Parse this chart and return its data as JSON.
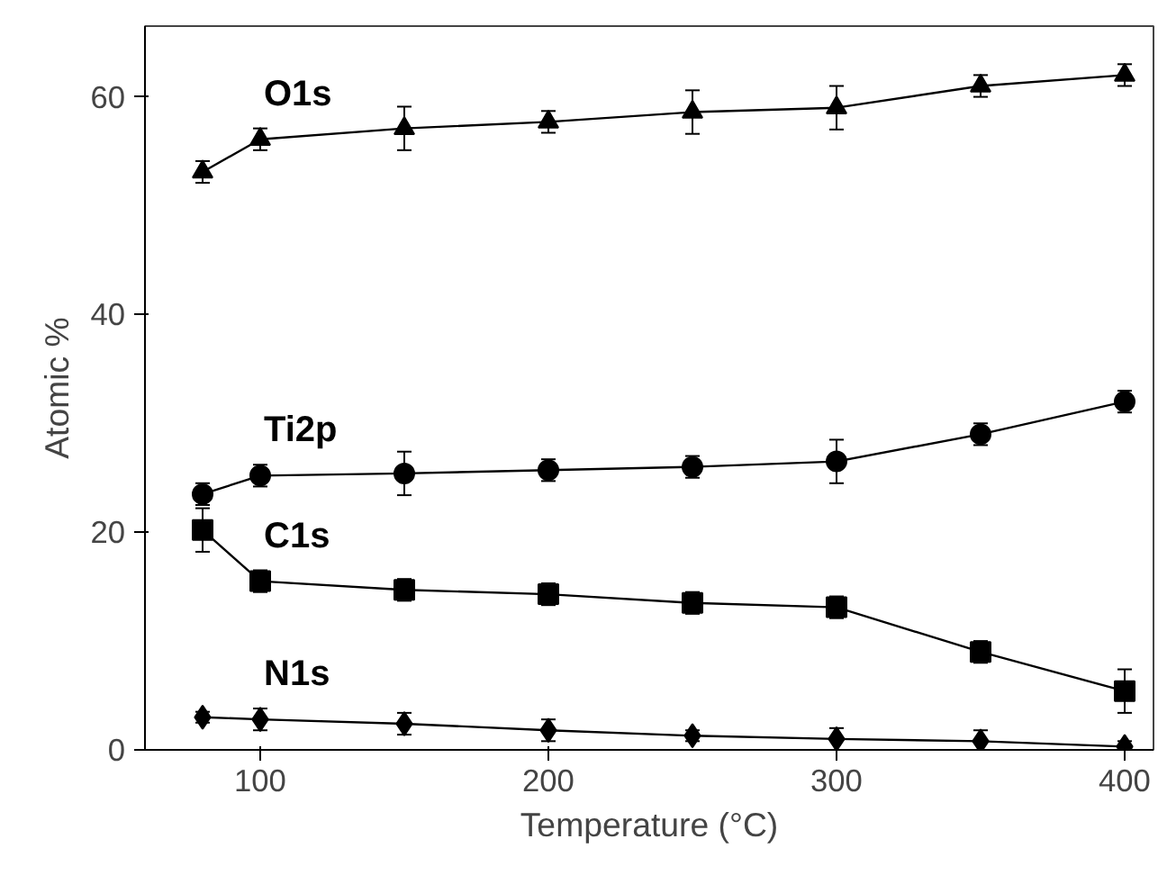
{
  "chart_data": {
    "type": "line",
    "xlabel": "Temperature (°C)",
    "ylabel": "Atomic %",
    "x": [
      80,
      100,
      150,
      200,
      250,
      300,
      350,
      400
    ],
    "xlim": [
      60,
      410
    ],
    "ylim": [
      0,
      66.5
    ],
    "xticks": [
      100,
      200,
      300,
      400
    ],
    "yticks": [
      0,
      20,
      40,
      60
    ],
    "grid": false,
    "series": [
      {
        "name": "O1s",
        "color": "#000000",
        "marker": "triangle",
        "values": [
          53.1,
          56.1,
          57.1,
          57.7,
          58.6,
          59.0,
          61.0,
          62.0
        ],
        "errors": [
          1,
          1,
          2,
          1,
          2,
          2,
          1,
          1
        ]
      },
      {
        "name": "Ti2p",
        "color": "#000000",
        "marker": "circle",
        "values": [
          23.5,
          25.2,
          25.4,
          25.7,
          26.0,
          26.5,
          29.0,
          32.0
        ],
        "errors": [
          1,
          1,
          2,
          1,
          1,
          2,
          1,
          1
        ]
      },
      {
        "name": "C1s",
        "color": "#000000",
        "marker": "square",
        "values": [
          20.2,
          15.5,
          14.7,
          14.3,
          13.5,
          13.1,
          9.0,
          5.4
        ],
        "errors": [
          2,
          1,
          1,
          1,
          1,
          1,
          1,
          2
        ]
      },
      {
        "name": "N1s",
        "color": "#000000",
        "marker": "diamond",
        "values": [
          3.0,
          2.8,
          2.4,
          1.8,
          1.3,
          1.0,
          0.8,
          0.3
        ],
        "errors": [
          0.5,
          1,
          1,
          1,
          0.5,
          1,
          1,
          0.5
        ]
      }
    ]
  }
}
